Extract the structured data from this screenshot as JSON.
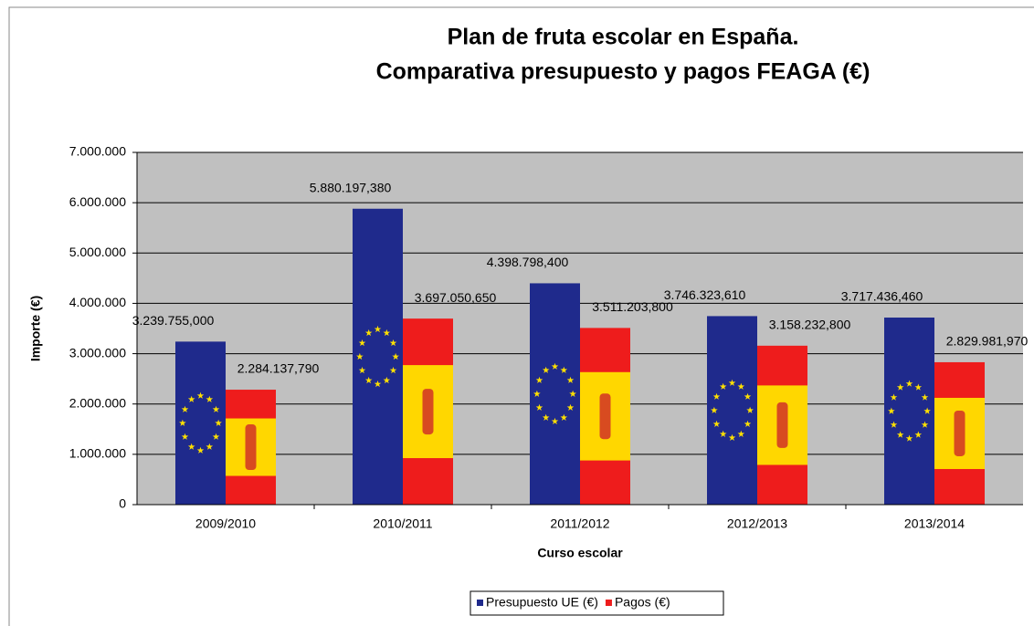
{
  "chart_data": {
    "type": "bar",
    "title": [
      "Plan de fruta escolar en España.",
      "Comparativa presupuesto y pagos FEAGA (€)"
    ],
    "x_label": "Curso escolar",
    "y_label": "Importe (€)",
    "categories": [
      "2009/2010",
      "2010/2011",
      "2011/2012",
      "2012/2013",
      "2013/2014"
    ],
    "series": [
      {
        "name": "Presupuesto UE (€)",
        "color": "#1f2a8c",
        "values": [
          3239755,
          5880197.38,
          4398798.4,
          3746323.61,
          3717436.46
        ],
        "value_labels": [
          "3.239.755,000",
          "5.880.197,380",
          "4.398.798,400",
          "3.746.323,610",
          "3.717.436,460"
        ]
      },
      {
        "name": "Pagos (€)",
        "color": "#ee1c1c",
        "values": [
          2284137.79,
          3697050.65,
          3511203.8,
          3158232.8,
          2829981.97
        ],
        "value_labels": [
          "2.284.137,790",
          "3.697.050,650",
          "3.511.203,800",
          "3.158.232,800",
          "2.829.981,970"
        ]
      }
    ],
    "ylim": [
      0,
      7000000
    ],
    "yticks": [
      0,
      {
        "value": 1000000,
        "label": "1.000.000"
      },
      {
        "value": 2000000,
        "label": "2.000.000"
      },
      {
        "value": 3000000,
        "label": "3.000.000"
      },
      {
        "value": 4000000,
        "label": "4.000.000"
      },
      {
        "value": 5000000,
        "label": "5.000.000"
      },
      {
        "value": 6000000,
        "label": "6.000.000"
      },
      {
        "value": 7000000,
        "label": "7.000.000"
      }
    ],
    "grid": true,
    "legend": "bottom"
  }
}
